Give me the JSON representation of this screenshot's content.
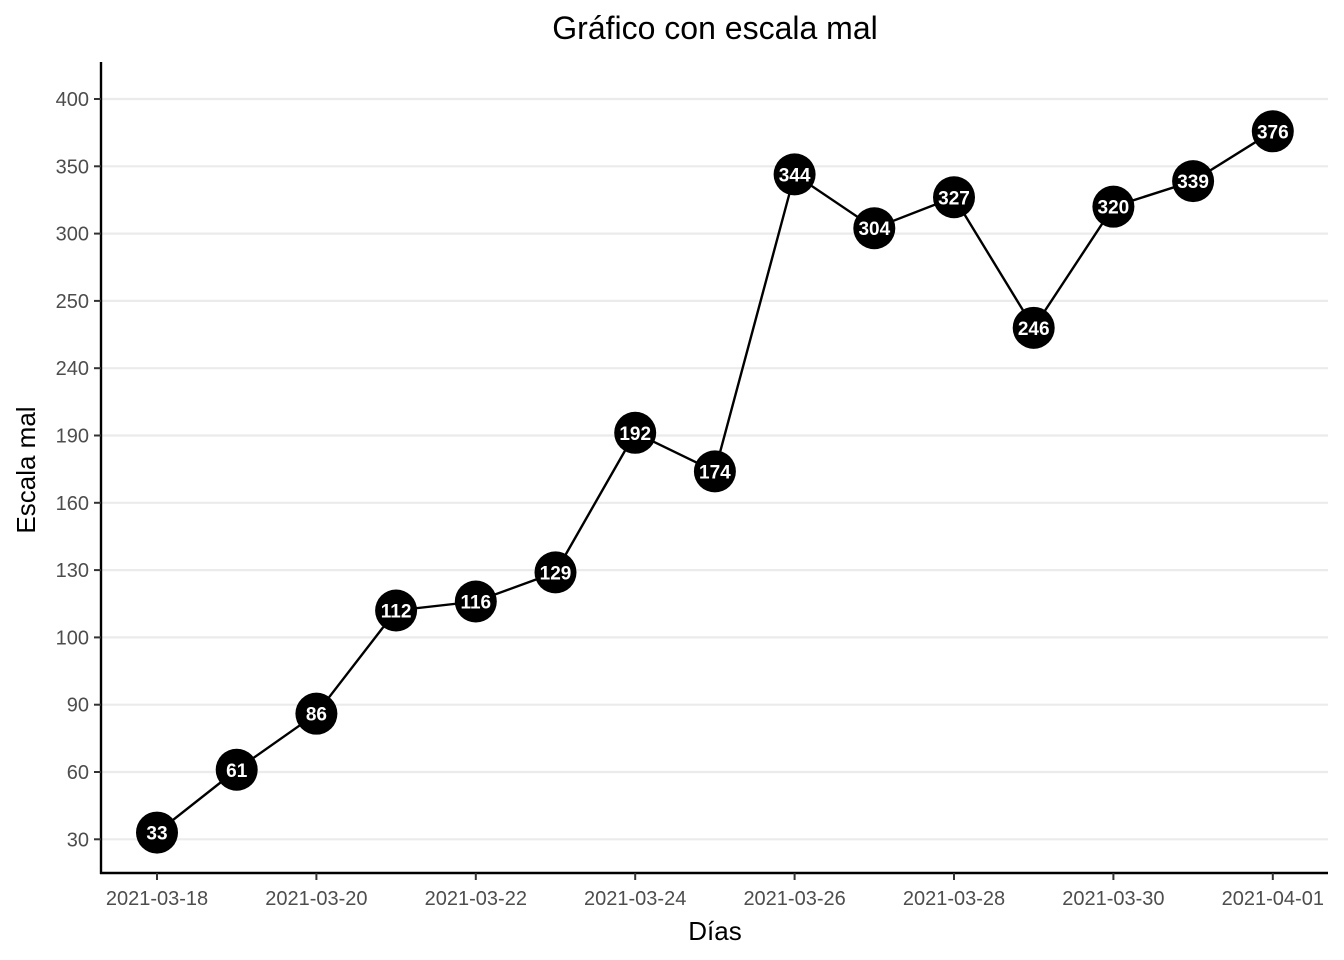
{
  "chart_data": {
    "type": "line",
    "title": "Gráfico con escala mal",
    "xlabel": "Días",
    "ylabel": "Escala mal",
    "x": [
      "2021-03-18",
      "2021-03-19",
      "2021-03-20",
      "2021-03-21",
      "2021-03-22",
      "2021-03-23",
      "2021-03-24",
      "2021-03-25",
      "2021-03-26",
      "2021-03-27",
      "2021-03-28",
      "2021-03-29",
      "2021-03-30",
      "2021-03-31",
      "2021-04-01"
    ],
    "values": [
      33,
      61,
      86,
      112,
      116,
      129,
      192,
      174,
      344,
      304,
      327,
      246,
      320,
      339,
      376
    ],
    "x_ticks": [
      "2021-03-18",
      "2021-03-20",
      "2021-03-22",
      "2021-03-24",
      "2021-03-26",
      "2021-03-28",
      "2021-03-30",
      "2021-04-01"
    ],
    "y_ticks": [
      "30",
      "60",
      "90",
      "100",
      "130",
      "160",
      "190",
      "240",
      "250",
      "300",
      "350",
      "400"
    ],
    "y_scale": "non-uniform (ticks evenly spaced)",
    "grid": "horizontal major gridlines",
    "legend": "none",
    "colors": {
      "line": "#000000",
      "point_fill": "#000000",
      "label_text": "#ffffff",
      "grid": "#ebebeb",
      "axis": "#000000"
    }
  }
}
